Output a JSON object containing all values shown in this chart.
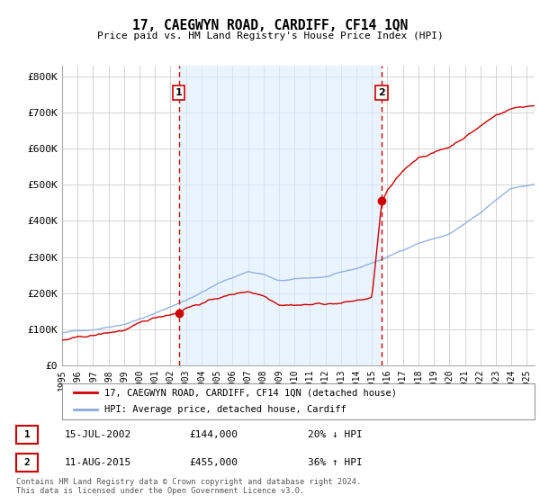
{
  "title": "17, CAEGWYN ROAD, CARDIFF, CF14 1QN",
  "subtitle": "Price paid vs. HM Land Registry's House Price Index (HPI)",
  "ylabel_ticks": [
    "£0",
    "£100K",
    "£200K",
    "£300K",
    "£400K",
    "£500K",
    "£600K",
    "£700K",
    "£800K"
  ],
  "ytick_values": [
    0,
    100000,
    200000,
    300000,
    400000,
    500000,
    600000,
    700000,
    800000
  ],
  "ylim": [
    0,
    830000
  ],
  "xlim_start": 1995.0,
  "xlim_end": 2025.5,
  "marker1_x": 2002.54,
  "marker1_y": 144000,
  "marker2_x": 2015.62,
  "marker2_y": 455000,
  "annotation1": [
    "1",
    "15-JUL-2002",
    "£144,000",
    "20% ↓ HPI"
  ],
  "annotation2": [
    "2",
    "11-AUG-2015",
    "£455,000",
    "36% ↑ HPI"
  ],
  "legend_line1": "17, CAEGWYN ROAD, CARDIFF, CF14 1QN (detached house)",
  "legend_line2": "HPI: Average price, detached house, Cardiff",
  "footer1": "Contains HM Land Registry data © Crown copyright and database right 2024.",
  "footer2": "This data is licensed under the Open Government Licence v3.0.",
  "line_color_property": "#cc0000",
  "line_color_hpi": "#88aadd",
  "shade_color": "#ddeeff",
  "vline_color": "#cc0000",
  "background_color": "#ffffff",
  "plot_bg_color": "#ffffff",
  "grid_color": "#cccccc"
}
